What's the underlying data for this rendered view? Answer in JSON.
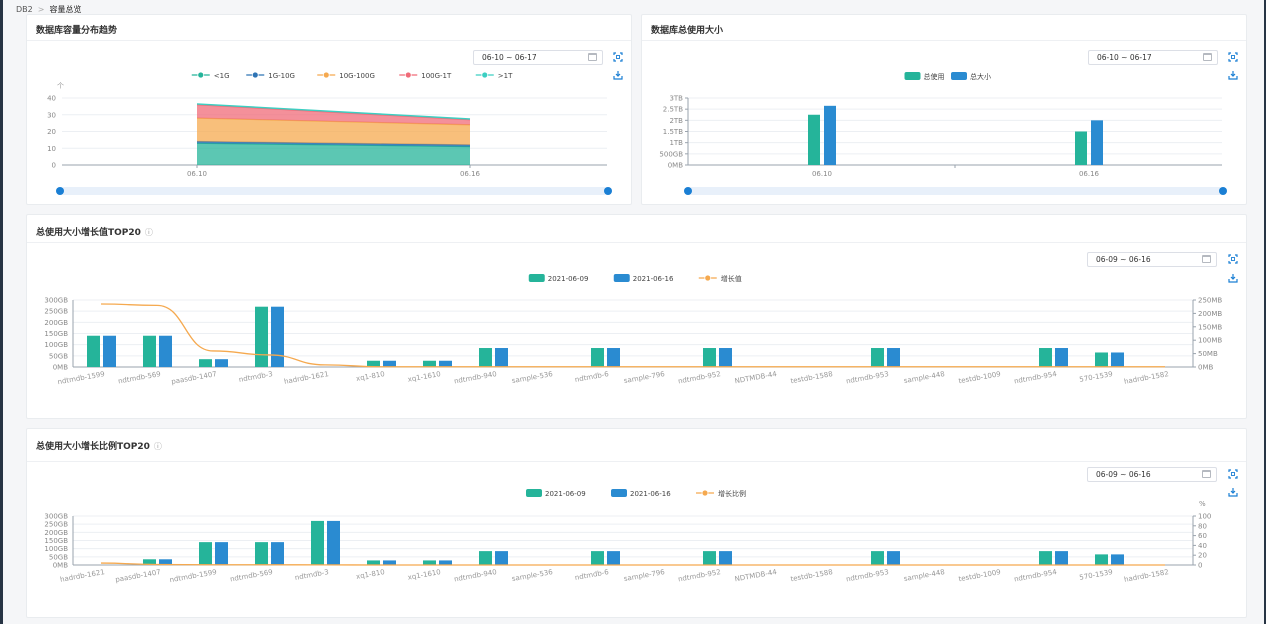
{
  "breadcrumb": {
    "root": "DB2",
    "current": "容量总览"
  },
  "colors": {
    "green": "#25b49a",
    "blue": "#2a8bd1",
    "orange": "#f5a94f",
    "red": "#f06b78",
    "teal": "#3ccfc2",
    "deepblue": "#2f74b5",
    "handle": "#1a7fd4"
  },
  "cards": {
    "trend": {
      "title": "数据库容量分布趋势",
      "date_range": "06-10  ~ 06-17",
      "chart_data": {
        "type": "area",
        "x": [
          "06.10",
          "06.16"
        ],
        "y_unit": "个",
        "ylim": [
          0,
          40
        ],
        "yticks": [
          "40",
          "30",
          "20",
          "10",
          "0"
        ],
        "legend": [
          "<1G",
          "1G-10G",
          "10G-100G",
          "100G-1T",
          ">1T"
        ],
        "series": [
          {
            "name": "<1G",
            "values": [
              13,
              11
            ]
          },
          {
            "name": "1G-10G",
            "values": [
              1,
              1
            ]
          },
          {
            "name": "10G-100G",
            "values": [
              14,
              12
            ]
          },
          {
            "name": "100G-1T",
            "values": [
              8,
              3
            ]
          },
          {
            "name": ">1T",
            "values": [
              0.5,
              0.5
            ]
          }
        ]
      }
    },
    "total": {
      "title": "数据库总使用大小",
      "date_range": "06-10  ~ 06-17",
      "chart_data": {
        "type": "bar",
        "categories": [
          "06.10",
          "06.16"
        ],
        "yticks": [
          "3TB",
          "2.5TB",
          "2TB",
          "1.5TB",
          "1TB",
          "500GB",
          "0MB"
        ],
        "ylim": [
          0,
          3
        ],
        "y_unit": "TB",
        "legend": [
          "总使用",
          "总大小"
        ],
        "series": [
          {
            "name": "总使用",
            "values": [
              2.25,
              1.5
            ]
          },
          {
            "name": "总大小",
            "values": [
              2.65,
              2.0
            ]
          }
        ]
      }
    },
    "growth_value": {
      "title": "总使用大小增长值TOP20",
      "info": "ⓘ",
      "date_range": "06-09  ~ 06-16",
      "chart_data": {
        "type": "bar",
        "categories": [
          "ndtmdb-1599",
          "ndtmdb-569",
          "paasdb-1407",
          "ndtmdb-3",
          "hadrdb-1621",
          "xq1-810",
          "xq1-1610",
          "ndtmdb-940",
          "sample-536",
          "ndtmdb-6",
          "sample-796",
          "ndtmdb-952",
          "NDTMDB-44",
          "testdb-1588",
          "ndtmdb-953",
          "sample-448",
          "testdb-1009",
          "ndtmdb-954",
          "570-1539",
          "hadrdb-1582"
        ],
        "yticks_left": [
          "300GB",
          "250GB",
          "200GB",
          "150GB",
          "100GB",
          "50GB",
          "0MB"
        ],
        "yticks_right": [
          "250MB",
          "200MB",
          "150MB",
          "100MB",
          "50MB",
          "0MB"
        ],
        "ylim_left_gb": [
          0,
          300
        ],
        "ylim_right_mb": [
          0,
          250
        ],
        "legend": [
          "2021-06-09",
          "2021-06-16",
          "增长值"
        ],
        "series": [
          {
            "name": "2021-06-09",
            "values": [
              140,
              140,
              35,
              270,
              0,
              28,
              28,
              85,
              0,
              85,
              0,
              85,
              0,
              0,
              85,
              0,
              0,
              85,
              65,
              0
            ]
          },
          {
            "name": "2021-06-16",
            "values": [
              140,
              140,
              35,
              270,
              0,
              28,
              28,
              85,
              0,
              85,
              0,
              85,
              0,
              0,
              85,
              0,
              0,
              85,
              65,
              0
            ]
          },
          {
            "name": "增长值",
            "values": [
              235,
              230,
              60,
              45,
              8,
              1,
              1,
              1,
              1,
              1,
              1,
              1,
              1,
              1,
              1,
              1,
              1,
              1,
              1,
              1
            ]
          }
        ]
      }
    },
    "growth_ratio": {
      "title": "总使用大小增长比例TOP20",
      "info": "ⓘ",
      "date_range": "06-09  ~ 06-16",
      "chart_data": {
        "type": "bar",
        "categories": [
          "hadrdb-1621",
          "paasdb-1407",
          "ndtmdb-1599",
          "ndtmdb-569",
          "ndtmdb-3",
          "xq1-810",
          "xq1-1610",
          "ndtmdb-940",
          "sample-536",
          "ndtmdb-6",
          "sample-796",
          "ndtmdb-952",
          "NDTMDB-44",
          "testdb-1588",
          "ndtmdb-953",
          "sample-448",
          "testdb-1009",
          "ndtmdb-954",
          "570-1539",
          "hadrdb-1582"
        ],
        "yticks_left": [
          "300GB",
          "250GB",
          "200GB",
          "150GB",
          "100GB",
          "50GB",
          "0MB"
        ],
        "yticks_right": [
          "100",
          "80",
          "60",
          "40",
          "20",
          "0"
        ],
        "right_unit": "%",
        "ylim_left_gb": [
          0,
          300
        ],
        "ylim_right_pct": [
          0,
          100
        ],
        "legend": [
          "2021-06-09",
          "2021-06-16",
          "增长比例"
        ],
        "series": [
          {
            "name": "2021-06-09",
            "values": [
              0,
              35,
              140,
              140,
              270,
              28,
              28,
              85,
              0,
              85,
              0,
              85,
              0,
              0,
              85,
              0,
              0,
              85,
              65,
              0
            ]
          },
          {
            "name": "2021-06-16",
            "values": [
              0,
              35,
              140,
              140,
              270,
              28,
              28,
              85,
              0,
              85,
              0,
              85,
              0,
              0,
              85,
              0,
              0,
              85,
              65,
              0
            ]
          },
          {
            "name": "增长比例",
            "values": [
              4,
              1,
              0.5,
              0.5,
              0.2,
              0,
              0,
              0,
              0,
              0,
              0,
              0,
              0,
              0,
              0,
              0,
              0,
              0,
              0,
              0
            ]
          }
        ]
      }
    }
  }
}
